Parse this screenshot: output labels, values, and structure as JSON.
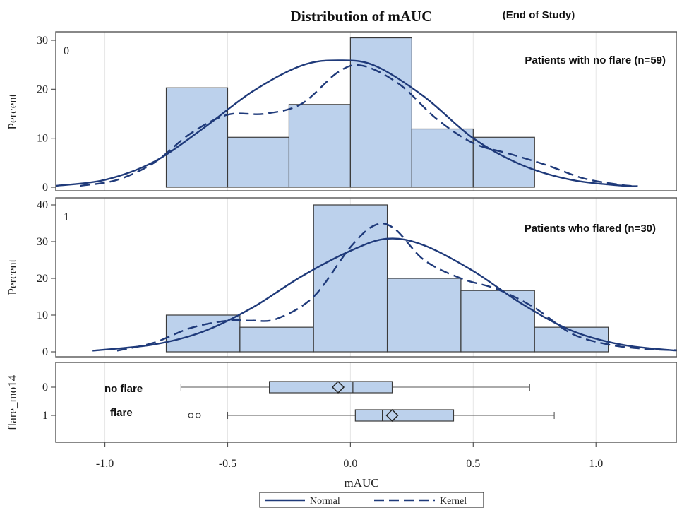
{
  "chart_data": [
    {
      "type": "bar",
      "title": "Distribution of mAUC",
      "subtitle": "(End of Study)",
      "panel_label": "0",
      "annotation": "Patients with no flare (n=59)",
      "ylabel": "Percent",
      "ylim": [
        0,
        30
      ],
      "yticks": [
        "0",
        "10",
        "20",
        "30"
      ],
      "bins": [
        {
          "x0": -0.75,
          "x1": -0.5,
          "value": 20.3
        },
        {
          "x0": -0.5,
          "x1": -0.25,
          "value": 10.2
        },
        {
          "x0": -0.25,
          "x1": 0.0,
          "value": 16.9
        },
        {
          "x0": 0.0,
          "x1": 0.25,
          "value": 30.5
        },
        {
          "x0": 0.25,
          "x1": 0.5,
          "value": 11.9
        },
        {
          "x0": 0.5,
          "x1": 0.75,
          "value": 10.2
        }
      ],
      "series": [
        {
          "name": "Normal",
          "x": [
            -1.2,
            -1.0,
            -0.8,
            -0.6,
            -0.4,
            -0.2,
            -0.05,
            0.1,
            0.3,
            0.5,
            0.7,
            0.9,
            1.1,
            1.17
          ],
          "y": [
            0.3,
            1.5,
            5.2,
            12.0,
            19.5,
            24.8,
            25.9,
            24.8,
            18.5,
            10.0,
            4.5,
            1.5,
            0.35,
            0.2
          ]
        },
        {
          "name": "Kernel",
          "x": [
            -1.1,
            -0.95,
            -0.8,
            -0.65,
            -0.5,
            -0.35,
            -0.2,
            -0.05,
            0.05,
            0.2,
            0.35,
            0.5,
            0.65,
            0.8,
            0.95,
            1.1,
            1.17
          ],
          "y": [
            0.3,
            1.5,
            5.0,
            11.0,
            14.8,
            15.0,
            17.0,
            23.5,
            24.8,
            21.0,
            14.0,
            9.0,
            6.8,
            4.5,
            1.8,
            0.5,
            0.2
          ]
        }
      ]
    },
    {
      "type": "bar",
      "panel_label": "1",
      "annotation": "Patients who flared (n=30)",
      "ylabel": "Percent",
      "ylim": [
        0,
        40
      ],
      "yticks": [
        "0",
        "10",
        "20",
        "30",
        "40"
      ],
      "bins": [
        {
          "x0": -0.75,
          "x1": -0.45,
          "value": 10.0
        },
        {
          "x0": -0.45,
          "x1": -0.15,
          "value": 6.7
        },
        {
          "x0": -0.15,
          "x1": 0.15,
          "value": 40.0
        },
        {
          "x0": 0.15,
          "x1": 0.45,
          "value": 20.0
        },
        {
          "x0": 0.45,
          "x1": 0.75,
          "value": 16.7
        },
        {
          "x0": 0.75,
          "x1": 1.05,
          "value": 6.7
        }
      ],
      "series": [
        {
          "name": "Normal",
          "x": [
            -1.05,
            -0.8,
            -0.6,
            -0.4,
            -0.2,
            0.0,
            0.15,
            0.3,
            0.5,
            0.7,
            0.9,
            1.1,
            1.3,
            1.35
          ],
          "y": [
            0.3,
            2.0,
            5.5,
            12.0,
            20.5,
            27.5,
            30.8,
            29.0,
            22.0,
            13.0,
            5.8,
            2.0,
            0.5,
            0.4
          ]
        },
        {
          "name": "Kernel",
          "x": [
            -0.95,
            -0.8,
            -0.65,
            -0.5,
            -0.4,
            -0.3,
            -0.15,
            0.0,
            0.1,
            0.18,
            0.3,
            0.45,
            0.6,
            0.75,
            0.9,
            1.05,
            1.2,
            1.35
          ],
          "y": [
            0.3,
            2.5,
            6.5,
            8.5,
            8.5,
            9.0,
            15.0,
            28.5,
            34.5,
            33.5,
            25.0,
            20.0,
            17.0,
            12.0,
            5.0,
            2.0,
            0.8,
            0.4
          ]
        }
      ]
    },
    {
      "type": "box",
      "ylabel": "flare_mo14",
      "xlabel": "mAUC",
      "xlim": [
        -1.2,
        1.33
      ],
      "xticks": [
        "-1.0",
        "-0.5",
        "0.0",
        "0.5",
        "1.0"
      ],
      "groups": [
        {
          "label": "0",
          "annotation": "no flare",
          "min": -0.69,
          "q1": -0.33,
          "median": 0.01,
          "q3": 0.17,
          "max": 0.73,
          "mean": -0.05,
          "outliers": []
        },
        {
          "label": "1",
          "annotation": "flare",
          "min": -0.5,
          "q1": 0.02,
          "median": 0.13,
          "q3": 0.42,
          "max": 0.83,
          "mean": 0.17,
          "outliers": [
            -0.65,
            -0.62
          ]
        }
      ]
    }
  ],
  "legend": {
    "items": [
      {
        "name": "Normal",
        "style": "solid"
      },
      {
        "name": "Kernel",
        "style": "dashed"
      }
    ],
    "placement": "bottom"
  }
}
